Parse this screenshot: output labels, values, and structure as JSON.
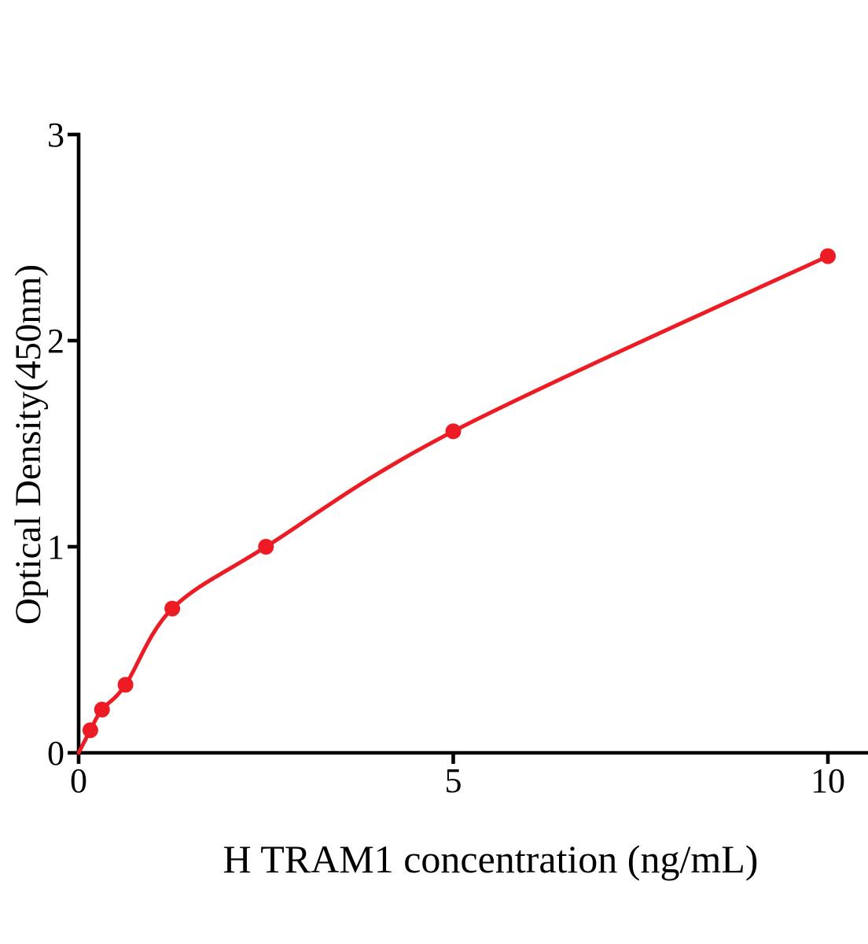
{
  "figure": {
    "background_color": "#FFFFFF"
  },
  "chart_data": {
    "type": "scatter",
    "subtype": "elisa-standard-curve",
    "title": "",
    "xlabel": "H TRAM1 concentration (ng/mL)",
    "ylabel": "Optical Density(450nm)",
    "xlim": [
      0,
      10.55
    ],
    "ylim": [
      0,
      3
    ],
    "grid": false,
    "legend": "none",
    "axis_color": "#000000",
    "x_ticks": [
      {
        "value": 0,
        "label": "0"
      },
      {
        "value": 5,
        "label": "5"
      },
      {
        "value": 10,
        "label": "10"
      }
    ],
    "y_ticks": [
      {
        "value": 0,
        "label": "0"
      },
      {
        "value": 1,
        "label": "1"
      },
      {
        "value": 2,
        "label": "2"
      },
      {
        "value": 3,
        "label": "3"
      }
    ],
    "series": [
      {
        "name": "H TRAM1 standard curve",
        "marker": "circle",
        "color": "#ED1C24",
        "curve_start": {
          "x": 0,
          "y": 0
        },
        "points": [
          {
            "x": 0.156,
            "y": 0.11
          },
          {
            "x": 0.312,
            "y": 0.21
          },
          {
            "x": 0.625,
            "y": 0.33
          },
          {
            "x": 1.25,
            "y": 0.7
          },
          {
            "x": 2.5,
            "y": 1.0
          },
          {
            "x": 5,
            "y": 1.56
          },
          {
            "x": 10,
            "y": 2.41
          }
        ]
      }
    ]
  }
}
